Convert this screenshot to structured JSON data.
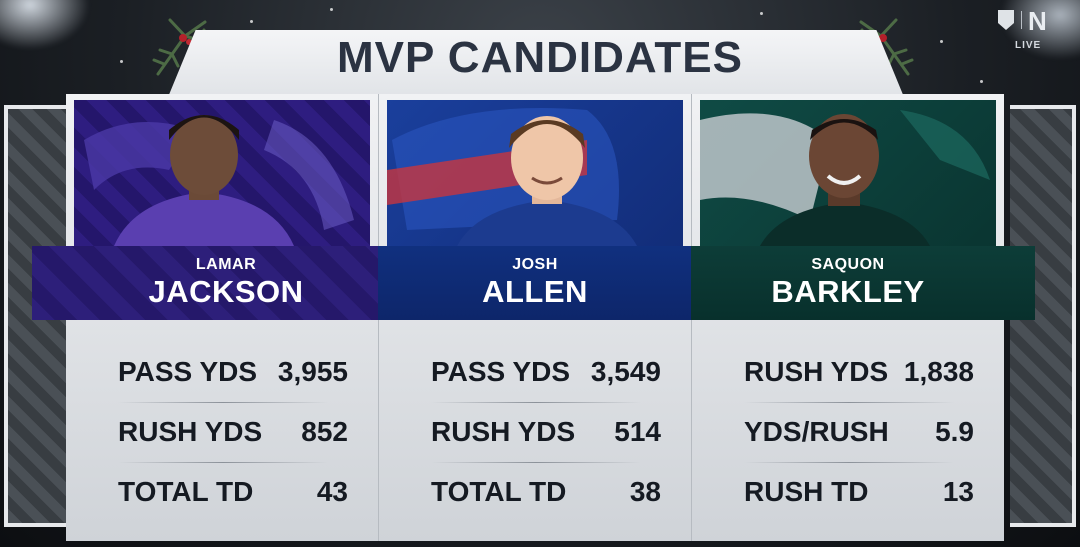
{
  "title": "MVP CANDIDATES",
  "broadcast_bug": {
    "network_letter": "N",
    "live_label": "LIVE",
    "league_logo_icon": "nfl-shield-icon"
  },
  "candidates": [
    {
      "first_name": "LAMAR",
      "last_name": "JACKSON",
      "team_color": "#2d1f7a",
      "stats": [
        {
          "label": "PASS YDS",
          "value": "3,955"
        },
        {
          "label": "RUSH YDS",
          "value": "852"
        },
        {
          "label": "TOTAL TD",
          "value": "43"
        }
      ]
    },
    {
      "first_name": "JOSH",
      "last_name": "ALLEN",
      "team_color": "#10307f",
      "stats": [
        {
          "label": "PASS YDS",
          "value": "3,549"
        },
        {
          "label": "RUSH YDS",
          "value": "514"
        },
        {
          "label": "TOTAL TD",
          "value": "38"
        }
      ]
    },
    {
      "first_name": "SAQUON",
      "last_name": "BARKLEY",
      "team_color": "#0d3d38",
      "stats": [
        {
          "label": "RUSH YDS",
          "value": "1,838"
        },
        {
          "label": "YDS/RUSH",
          "value": "5.9"
        },
        {
          "label": "RUSH TD",
          "value": "13"
        }
      ]
    }
  ]
}
